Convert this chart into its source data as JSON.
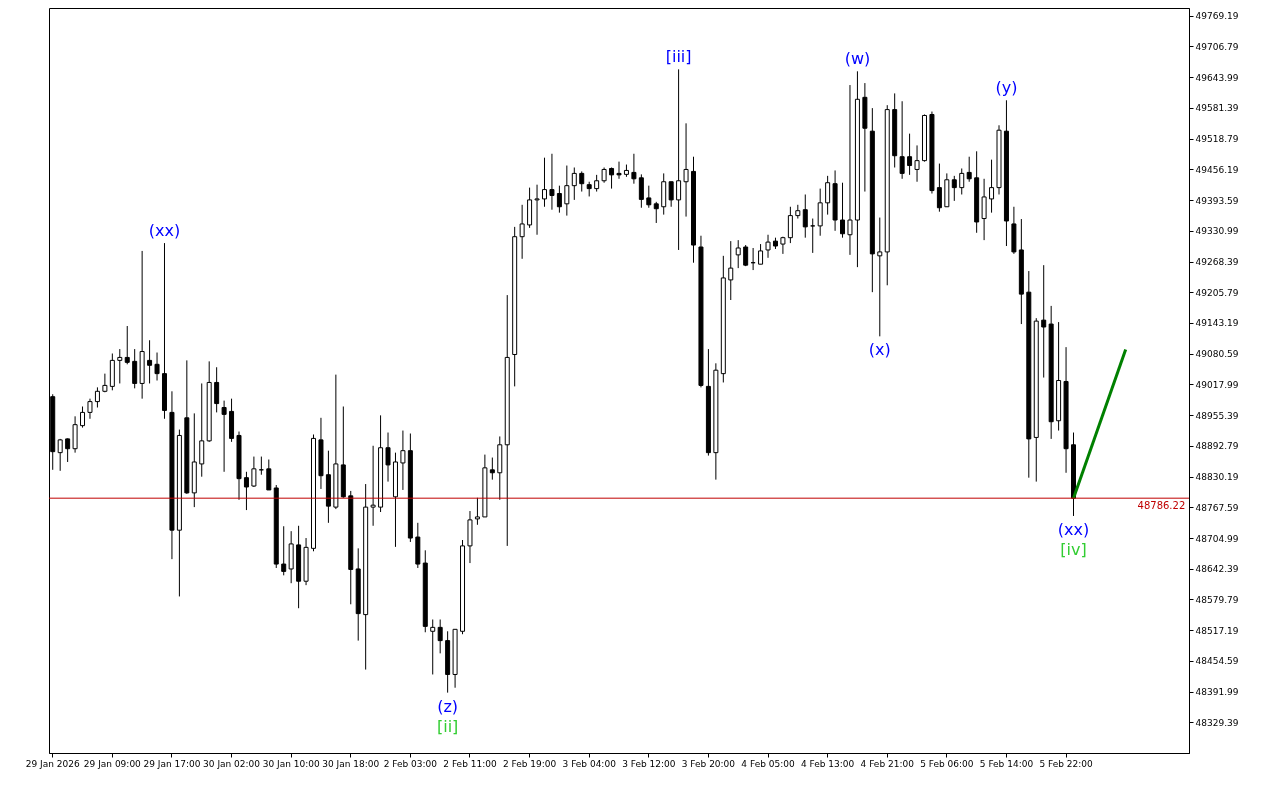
{
  "chart_data": {
    "type": "candlestick",
    "categories": [
      "29 Jan 2026",
      null,
      null,
      null,
      null,
      null,
      null,
      null,
      "29 Jan 09:00",
      null,
      null,
      null,
      null,
      null,
      null,
      null,
      "29 Jan 17:00",
      null,
      null,
      null,
      null,
      null,
      null,
      null,
      "30 Jan 02:00",
      null,
      null,
      null,
      null,
      null,
      null,
      null,
      "30 Jan 10:00",
      null,
      null,
      null,
      null,
      null,
      null,
      null,
      "30 Jan 18:00",
      null,
      null,
      null,
      null,
      null,
      null,
      null,
      "2 Feb 03:00",
      null,
      null,
      null,
      null,
      null,
      null,
      null,
      "2 Feb 11:00",
      null,
      null,
      null,
      null,
      null,
      null,
      null,
      "2 Feb 19:00",
      null,
      null,
      null,
      null,
      null,
      null,
      null,
      "3 Feb 04:00",
      null,
      null,
      null,
      null,
      null,
      null,
      null,
      "3 Feb 12:00",
      null,
      null,
      null,
      null,
      null,
      null,
      null,
      "3 Feb 20:00",
      null,
      null,
      null,
      null,
      null,
      null,
      null,
      "4 Feb 05:00",
      null,
      null,
      null,
      null,
      null,
      null,
      null,
      "4 Feb 13:00",
      null,
      null,
      null,
      null,
      null,
      null,
      null,
      "4 Feb 21:00",
      null,
      null,
      null,
      null,
      null,
      null,
      null,
      "5 Feb 06:00",
      null,
      null,
      null,
      null,
      null,
      null,
      null,
      "5 Feb 14:00",
      null,
      null,
      null,
      null,
      null,
      null,
      null,
      "5 Feb 22:00",
      null,
      null,
      null,
      null,
      null,
      null,
      null,
      null,
      null,
      null,
      null,
      null,
      null,
      null,
      null,
      null
    ],
    "ohlc": [
      [
        48993,
        48998,
        48844,
        48881
      ],
      [
        48879,
        48907,
        48842,
        48905
      ],
      [
        48907,
        48908,
        48860,
        48887
      ],
      [
        48887,
        48953,
        48879,
        48936
      ],
      [
        48934,
        48973,
        48930,
        48961
      ],
      [
        48961,
        48989,
        48948,
        48983
      ],
      [
        48983,
        49012,
        48971,
        49004
      ],
      [
        49004,
        49040,
        49002,
        49016
      ],
      [
        49014,
        49081,
        49006,
        49067
      ],
      [
        49067,
        49090,
        49020,
        49073
      ],
      [
        49073,
        49137,
        49059,
        49063
      ],
      [
        49065,
        49090,
        49010,
        49020
      ],
      [
        49020,
        49290,
        48989,
        49085
      ],
      [
        49067,
        49108,
        49020,
        49057
      ],
      [
        49059,
        49083,
        49026,
        49040
      ],
      [
        49040,
        49306,
        48948,
        48965
      ],
      [
        48961,
        49004,
        48662,
        48721
      ],
      [
        48721,
        48926,
        48586,
        48914
      ],
      [
        48950,
        49067,
        48795,
        48797
      ],
      [
        48797,
        48959,
        48768,
        48860
      ],
      [
        48856,
        49020,
        48830,
        48903
      ],
      [
        48903,
        49065,
        48901,
        49022
      ],
      [
        49022,
        49053,
        48961,
        48979
      ],
      [
        48971,
        48985,
        48840,
        48957
      ],
      [
        48963,
        48989,
        48901,
        48908
      ],
      [
        48914,
        48922,
        48783,
        48826
      ],
      [
        48828,
        48840,
        48762,
        48809
      ],
      [
        48811,
        48871,
        48809,
        48846
      ],
      [
        48844,
        48871,
        48834,
        48844
      ],
      [
        48846,
        48865,
        48803,
        48803
      ],
      [
        48807,
        48813,
        48644,
        48652
      ],
      [
        48652,
        48729,
        48629,
        48637
      ],
      [
        48642,
        48719,
        48613,
        48693
      ],
      [
        48691,
        48730,
        48562,
        48617
      ],
      [
        48617,
        48705,
        48609,
        48686
      ],
      [
        48684,
        48916,
        48678,
        48908
      ],
      [
        48905,
        48950,
        48805,
        48832
      ],
      [
        48834,
        48883,
        48736,
        48770
      ],
      [
        48768,
        49038,
        48764,
        48856
      ],
      [
        48854,
        48973,
        48787,
        48789
      ],
      [
        48791,
        48801,
        48570,
        48641
      ],
      [
        48642,
        48684,
        48496,
        48551
      ],
      [
        48549,
        48815,
        48437,
        48768
      ],
      [
        48768,
        48893,
        48730,
        48772
      ],
      [
        48768,
        48955,
        48758,
        48889
      ],
      [
        48889,
        48920,
        48820,
        48854
      ],
      [
        48789,
        48879,
        48687,
        48860
      ],
      [
        48858,
        48924,
        48803,
        48883
      ],
      [
        48883,
        48918,
        48697,
        48705
      ],
      [
        48707,
        48736,
        48644,
        48652
      ],
      [
        48654,
        48680,
        48513,
        48525
      ],
      [
        48515,
        48539,
        48427,
        48523
      ],
      [
        48523,
        48539,
        48470,
        48496
      ],
      [
        48496,
        48515,
        48390,
        48427
      ],
      [
        48427,
        48519,
        48400,
        48519
      ],
      [
        48515,
        48701,
        48509,
        48689
      ],
      [
        48689,
        48760,
        48654,
        48742
      ],
      [
        48744,
        48787,
        48732,
        48748
      ],
      [
        48748,
        48875,
        48748,
        48848
      ],
      [
        48844,
        48869,
        48824,
        48838
      ],
      [
        48838,
        48912,
        48783,
        48895
      ],
      [
        48895,
        49200,
        48689,
        49073
      ],
      [
        49079,
        49339,
        49014,
        49319
      ],
      [
        49319,
        49384,
        49274,
        49345
      ],
      [
        49343,
        49419,
        49337,
        49394
      ],
      [
        49394,
        49425,
        49323,
        49396
      ],
      [
        49396,
        49480,
        49380,
        49415
      ],
      [
        49415,
        49488,
        49374,
        49403
      ],
      [
        49407,
        49423,
        49368,
        49380
      ],
      [
        49386,
        49464,
        49362,
        49423
      ],
      [
        49423,
        49460,
        49394,
        49448
      ],
      [
        49448,
        49452,
        49411,
        49427
      ],
      [
        49425,
        49431,
        49401,
        49417
      ],
      [
        49417,
        49445,
        49411,
        49433
      ],
      [
        49433,
        49460,
        49429,
        49456
      ],
      [
        49458,
        49460,
        49417,
        49445
      ],
      [
        49448,
        49472,
        49437,
        49445
      ],
      [
        49446,
        49466,
        49441,
        49454
      ],
      [
        49450,
        49488,
        49427,
        49437
      ],
      [
        49439,
        49446,
        49378,
        49395
      ],
      [
        49398,
        49423,
        49378,
        49384
      ],
      [
        49386,
        49390,
        49347,
        49376
      ],
      [
        49380,
        49448,
        49364,
        49431
      ],
      [
        49431,
        49431,
        49380,
        49394
      ],
      [
        49394,
        49660,
        49292,
        49433
      ],
      [
        49431,
        49550,
        49360,
        49456
      ],
      [
        49452,
        49482,
        49266,
        49302
      ],
      [
        49298,
        49321,
        49012,
        49016
      ],
      [
        49014,
        49090,
        48873,
        48879
      ],
      [
        48879,
        49061,
        48824,
        49047
      ],
      [
        49040,
        49280,
        49022,
        49235
      ],
      [
        49231,
        49310,
        49190,
        49255
      ],
      [
        49282,
        49312,
        49255,
        49296
      ],
      [
        49298,
        49302,
        49259,
        49261
      ],
      [
        49266,
        49296,
        49251,
        49266
      ],
      [
        49263,
        49304,
        49263,
        49290
      ],
      [
        49292,
        49323,
        49276,
        49308
      ],
      [
        49310,
        49317,
        49294,
        49300
      ],
      [
        49304,
        49319,
        49284,
        49317
      ],
      [
        49317,
        49380,
        49306,
        49362
      ],
      [
        49362,
        49384,
        49356,
        49372
      ],
      [
        49374,
        49405,
        49317,
        49339
      ],
      [
        49341,
        49356,
        49286,
        49341
      ],
      [
        49341,
        49417,
        49321,
        49388
      ],
      [
        49388,
        49443,
        49364,
        49429
      ],
      [
        49427,
        49454,
        49331,
        49353
      ],
      [
        49353,
        49429,
        49317,
        49325
      ],
      [
        49323,
        49628,
        49282,
        49353
      ],
      [
        49353,
        49656,
        49257,
        49599
      ],
      [
        49603,
        49632,
        49411,
        49540
      ],
      [
        49534,
        49581,
        49206,
        49284
      ],
      [
        49280,
        49358,
        49116,
        49288
      ],
      [
        49288,
        49587,
        49220,
        49578
      ],
      [
        49578,
        49611,
        49460,
        49484
      ],
      [
        49482,
        49595,
        49437,
        49448
      ],
      [
        49482,
        49529,
        49445,
        49464
      ],
      [
        49456,
        49505,
        49431,
        49474
      ],
      [
        49474,
        49568,
        49472,
        49566
      ],
      [
        49568,
        49574,
        49407,
        49413
      ],
      [
        49419,
        49468,
        49370,
        49378
      ],
      [
        49380,
        49448,
        49380,
        49435
      ],
      [
        49435,
        49443,
        49392,
        49419
      ],
      [
        49419,
        49458,
        49405,
        49448
      ],
      [
        49450,
        49482,
        49431,
        49437
      ],
      [
        49439,
        49493,
        49327,
        49349
      ],
      [
        49356,
        49437,
        49312,
        49400
      ],
      [
        49396,
        49476,
        49368,
        49419
      ],
      [
        49419,
        49546,
        49405,
        49536
      ],
      [
        49534,
        49597,
        49300,
        49351
      ],
      [
        49345,
        49380,
        49284,
        49288
      ],
      [
        49292,
        49355,
        49141,
        49202
      ],
      [
        49206,
        49249,
        48828,
        48907
      ],
      [
        48910,
        49153,
        48820,
        49147
      ],
      [
        49149,
        49261,
        49032,
        49135
      ],
      [
        49141,
        49178,
        48907,
        48942
      ],
      [
        48944,
        49145,
        48924,
        49026
      ],
      [
        49024,
        49094,
        48838,
        48887
      ],
      [
        48895,
        48920,
        48750,
        48786.22
      ],
      null,
      null,
      null,
      null,
      null,
      null,
      null,
      null,
      null,
      null,
      null,
      null,
      null,
      null,
      null
    ],
    "series": [
      {
        "type": "line",
        "color": "#008000",
        "values": [
          null,
          null,
          null,
          null,
          null,
          null,
          null,
          null,
          null,
          null,
          null,
          null,
          null,
          null,
          null,
          null,
          null,
          null,
          null,
          null,
          null,
          null,
          null,
          null,
          null,
          null,
          null,
          null,
          null,
          null,
          null,
          null,
          null,
          null,
          null,
          null,
          null,
          null,
          null,
          null,
          null,
          null,
          null,
          null,
          null,
          null,
          null,
          null,
          null,
          null,
          null,
          null,
          null,
          null,
          null,
          null,
          null,
          null,
          null,
          null,
          null,
          null,
          null,
          null,
          null,
          null,
          null,
          null,
          null,
          null,
          null,
          null,
          null,
          null,
          null,
          null,
          null,
          null,
          null,
          null,
          null,
          null,
          null,
          null,
          null,
          null,
          null,
          null,
          null,
          null,
          null,
          null,
          null,
          null,
          null,
          null,
          null,
          null,
          null,
          null,
          null,
          null,
          null,
          null,
          null,
          null,
          null,
          null,
          null,
          null,
          null,
          null,
          null,
          null,
          null,
          null,
          null,
          null,
          null,
          null,
          null,
          null,
          null,
          null,
          null,
          null,
          null,
          null,
          null,
          null,
          null,
          null,
          null,
          null,
          null,
          null,
          null,
          48786,
          null,
          null,
          null,
          null,
          null,
          null,
          49089,
          null,
          null,
          null,
          null,
          null,
          null,
          null,
          null
        ]
      }
    ],
    "ylim": [
      48267,
      49785
    ],
    "yticks": [
      48329.39,
      48391.99,
      48454.59,
      48517.19,
      48579.79,
      48642.39,
      48704.99,
      48767.59,
      48830.19,
      48892.79,
      48955.39,
      49017.99,
      49080.59,
      49143.19,
      49205.79,
      49268.39,
      49330.99,
      49393.59,
      49456.19,
      49518.79,
      49581.39,
      49643.99,
      49706.79,
      49769.19
    ],
    "ref_lines": [
      {
        "axis": "y",
        "value": 48786.22,
        "label": "48786.22",
        "color": "#c00000"
      }
    ],
    "annotations": [
      {
        "text": "(xx)",
        "y": 49306
      },
      {
        "text": "(z)",
        "y": 48390
      },
      {
        "text": "[ii]",
        "y": 48390
      },
      {
        "text": "[iii]",
        "y": 49660
      },
      {
        "text": "(w)",
        "y": 49656
      },
      {
        "text": "(x)",
        "y": 49116
      },
      {
        "text": "(y)",
        "y": 49597
      },
      {
        "text": "(xx)",
        "y": 48750
      },
      {
        "text": "[iv]",
        "y": 48750
      }
    ]
  }
}
